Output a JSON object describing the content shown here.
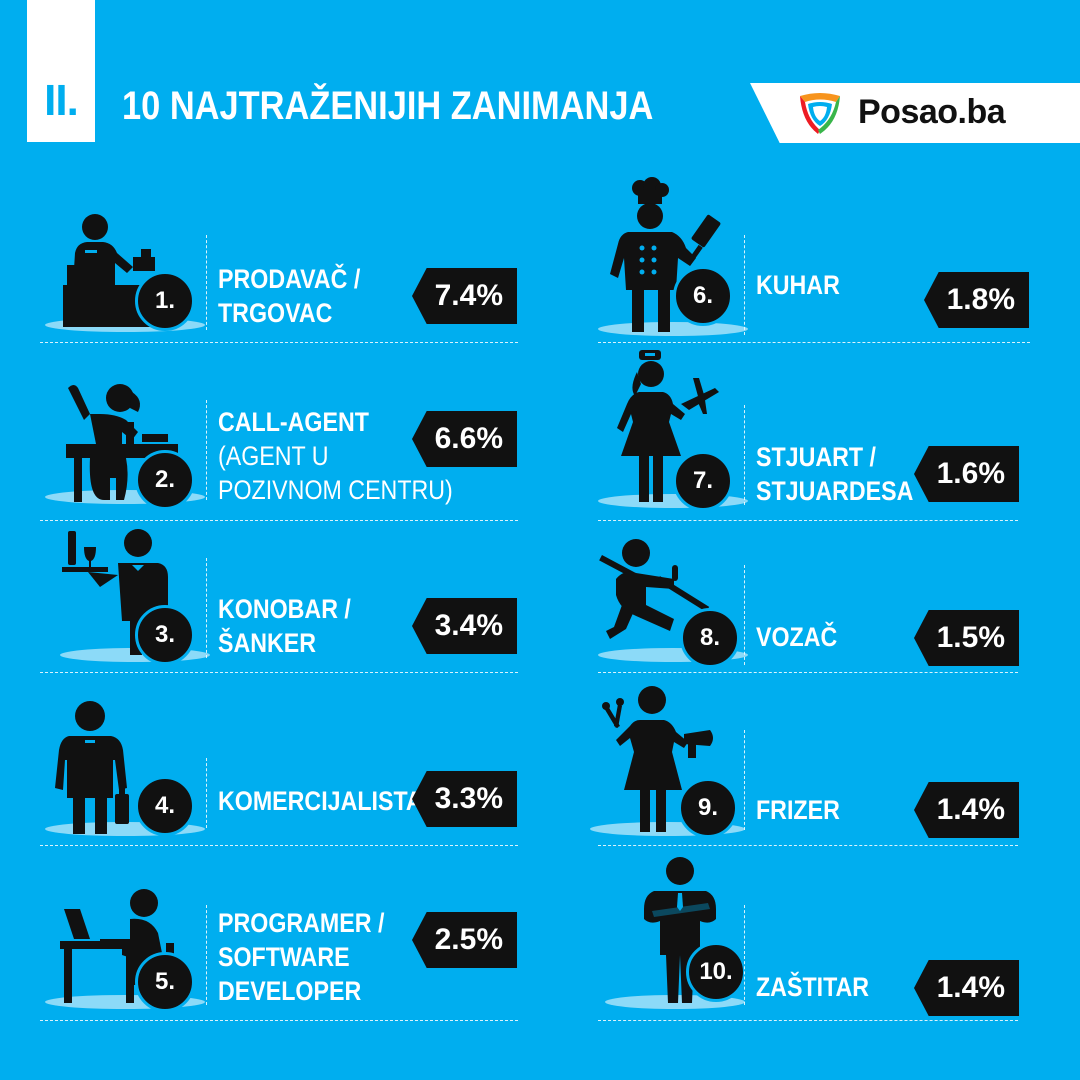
{
  "header": {
    "section_number": "II.",
    "title": "10 NAJTRAŽENIJIH ZANIMANJA",
    "brand": "Posao.ba"
  },
  "colors": {
    "background": "#00aeef",
    "dark": "#111111",
    "white": "#ffffff"
  },
  "occupations": [
    {
      "rank": "1.",
      "label": "PRODAVAČ /",
      "label2": "TRGOVAC",
      "sub": "",
      "percent": "7.4%",
      "icon": "cashier-icon"
    },
    {
      "rank": "2.",
      "label": "CALL-AGENT",
      "label2": "",
      "sub": "(AGENT U",
      "sub2": "POZIVNOM CENTRU)",
      "percent": "6.6%",
      "icon": "call-agent-icon"
    },
    {
      "rank": "3.",
      "label": "KONOBAR /",
      "label2": "ŠANKER",
      "sub": "",
      "percent": "3.4%",
      "icon": "waiter-icon"
    },
    {
      "rank": "4.",
      "label": "KOMERCIJALISTA",
      "label2": "",
      "sub": "",
      "percent": "3.3%",
      "icon": "salesman-icon"
    },
    {
      "rank": "5.",
      "label": "PROGRAMER /",
      "label2": "SOFTWARE",
      "label3": "DEVELOPER",
      "sub": "",
      "percent": "2.5%",
      "icon": "programmer-icon"
    },
    {
      "rank": "6.",
      "label": "KUHAR",
      "label2": "",
      "sub": "",
      "percent": "1.8%",
      "icon": "chef-icon"
    },
    {
      "rank": "7.",
      "label": "STJUART /",
      "label2": "STJUARDESA",
      "sub": "",
      "percent": "1.6%",
      "icon": "flight-attendant-icon"
    },
    {
      "rank": "8.",
      "label": "VOZAČ",
      "label2": "",
      "sub": "",
      "percent": "1.5%",
      "icon": "driver-icon"
    },
    {
      "rank": "9.",
      "label": "FRIZER",
      "label2": "",
      "sub": "",
      "percent": "1.4%",
      "icon": "hairdresser-icon"
    },
    {
      "rank": "10.",
      "label": "ZAŠTITAR",
      "label2": "",
      "sub": "",
      "percent": "1.4%",
      "icon": "security-guard-icon"
    }
  ]
}
